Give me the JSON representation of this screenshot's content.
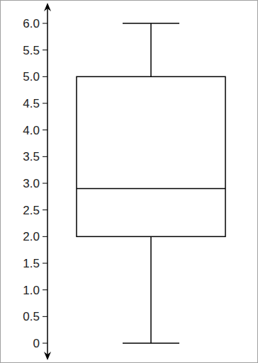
{
  "chart_data": {
    "type": "box",
    "min": 0,
    "q1": 2.0,
    "median": 2.9,
    "q3": 5.0,
    "max": 6.0,
    "color": "#000000",
    "ylim": [
      0,
      6
    ],
    "yticks": [
      0,
      0.5,
      {
        "value": 1,
        "label": "1.0"
      },
      1.5,
      {
        "value": 2,
        "label": "2.0"
      },
      2.5,
      {
        "value": 3,
        "label": "3.0"
      },
      3.5,
      {
        "value": 4,
        "label": "4.0"
      },
      4.5,
      {
        "value": 5,
        "label": "5.0"
      },
      5.5,
      {
        "value": 6,
        "label": "6.0"
      }
    ]
  }
}
